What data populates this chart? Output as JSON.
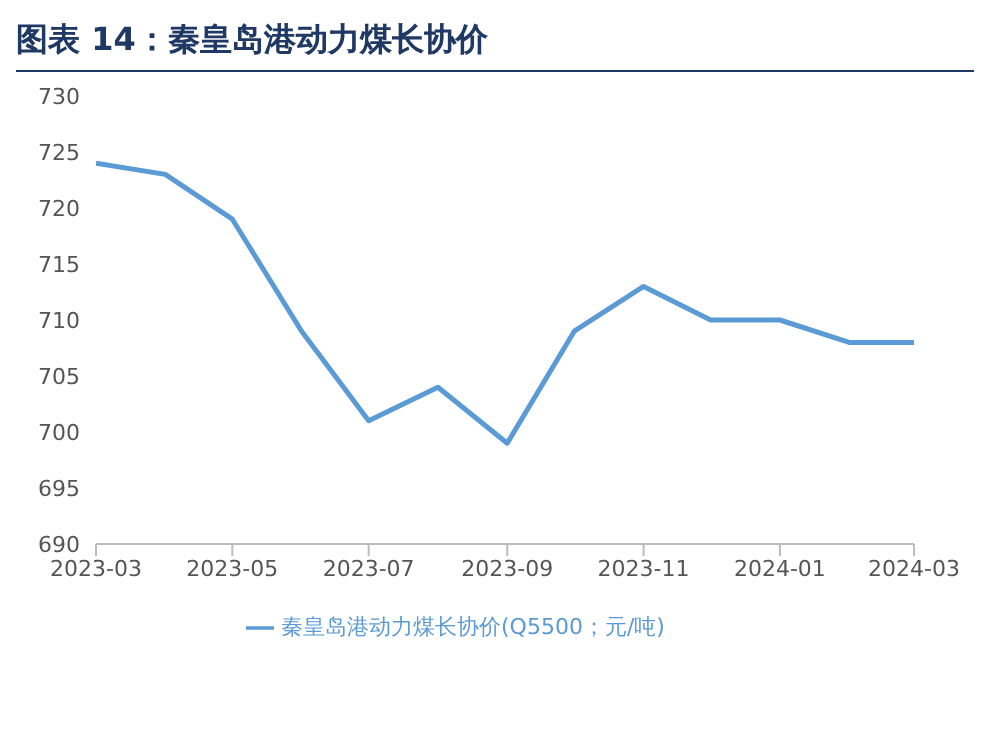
{
  "chart_data": {
    "type": "line",
    "title": "图表 14：秦皇岛港动力煤长协价",
    "x": [
      "2023-03",
      "2023-04",
      "2023-05",
      "2023-06",
      "2023-07",
      "2023-08",
      "2023-09",
      "2023-10",
      "2023-11",
      "2023-12",
      "2024-01",
      "2024-02",
      "2024-03"
    ],
    "series": [
      {
        "name": "秦皇岛港动力煤长协价(Q5500；元/吨)",
        "color": "#5b9bd5",
        "values": [
          724,
          723,
          719,
          709,
          701,
          704,
          699,
          709,
          713,
          710,
          710,
          708,
          708
        ]
      }
    ],
    "xlim": [
      "2023-03",
      "2024-03"
    ],
    "xticks": [
      "2023-03",
      "2023-05",
      "2023-07",
      "2023-09",
      "2023-11",
      "2024-01",
      "2024-03"
    ],
    "ylim": [
      690,
      730
    ],
    "yticks": [
      690,
      695,
      700,
      705,
      710,
      715,
      720,
      725,
      730
    ],
    "grid": false,
    "legend": "bottom",
    "marker": "none",
    "line_style": "solid"
  }
}
